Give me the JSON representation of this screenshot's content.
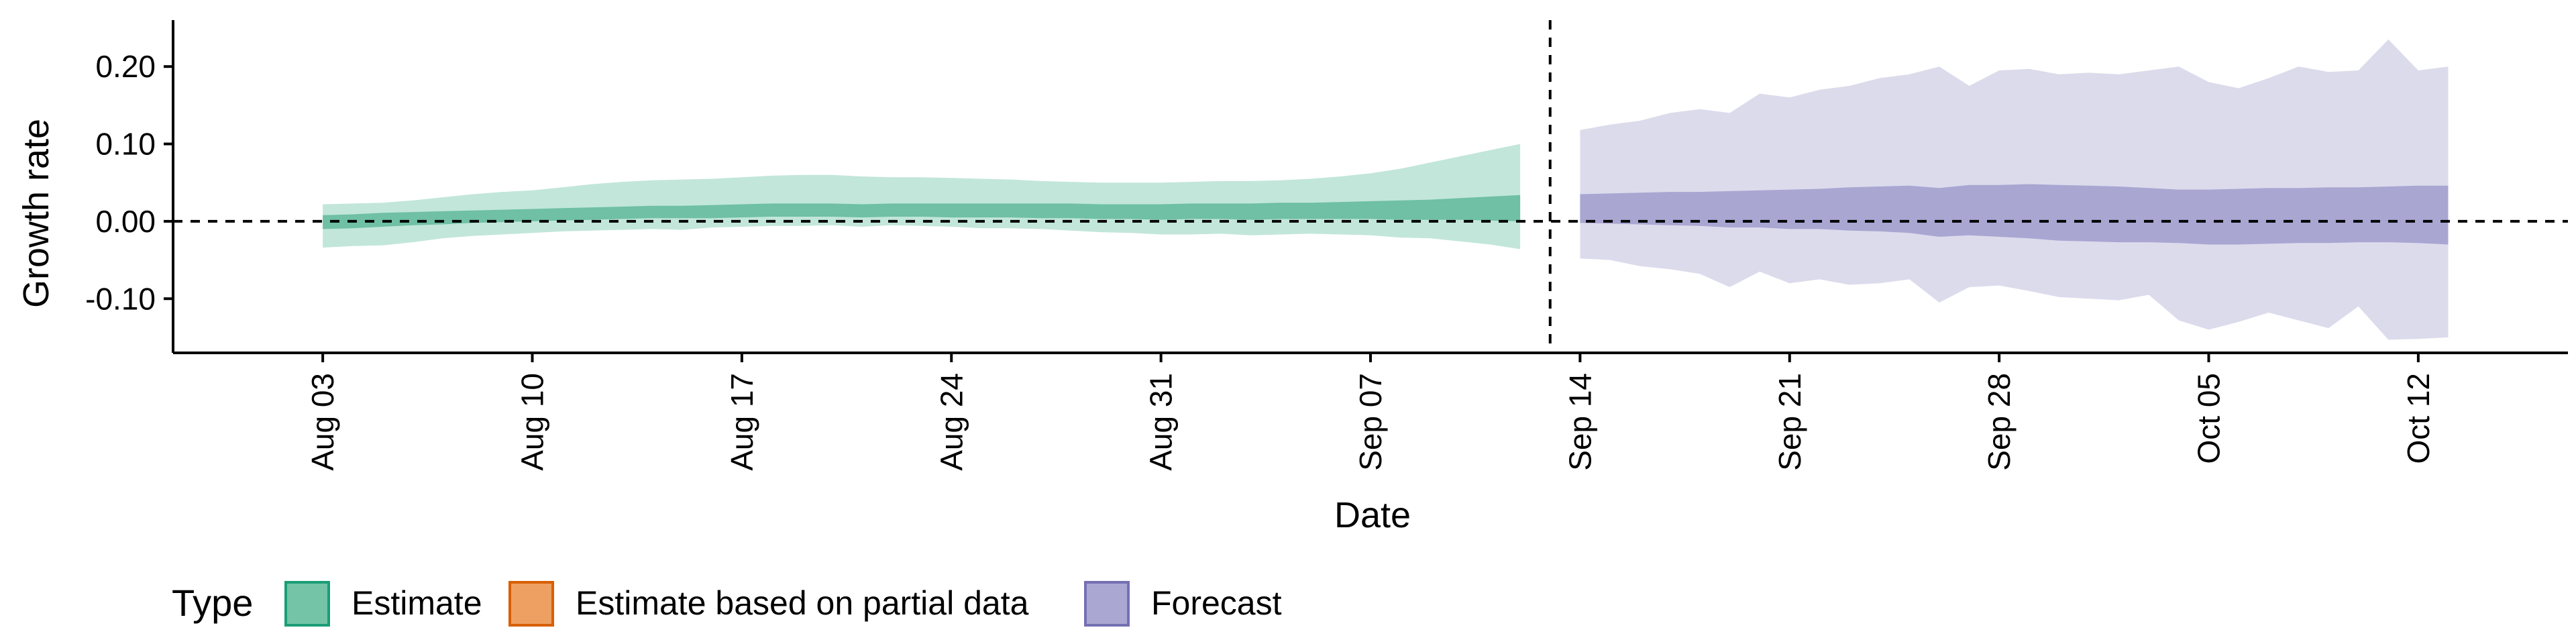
{
  "chart_data": {
    "type": "area",
    "title": "",
    "xlabel": "Date",
    "ylabel": "Growth rate",
    "x_range": [
      "2020-07-29",
      "2020-10-17"
    ],
    "ylim": [
      -0.17,
      0.26
    ],
    "y_ticks": [
      {
        "value": -0.1,
        "label": "-0.10"
      },
      {
        "value": 0.0,
        "label": "0.00"
      },
      {
        "value": 0.1,
        "label": "0.10"
      },
      {
        "value": 0.2,
        "label": "0.20"
      }
    ],
    "x_ticks": [
      {
        "date": "2020-08-03",
        "label": "Aug 03"
      },
      {
        "date": "2020-08-10",
        "label": "Aug 10"
      },
      {
        "date": "2020-08-17",
        "label": "Aug 17"
      },
      {
        "date": "2020-08-24",
        "label": "Aug 24"
      },
      {
        "date": "2020-08-31",
        "label": "Aug 31"
      },
      {
        "date": "2020-09-07",
        "label": "Sep 07"
      },
      {
        "date": "2020-09-14",
        "label": "Sep 14"
      },
      {
        "date": "2020-09-21",
        "label": "Sep 21"
      },
      {
        "date": "2020-09-28",
        "label": "Sep 28"
      },
      {
        "date": "2020-10-05",
        "label": "Oct 05"
      },
      {
        "date": "2020-10-12",
        "label": "Oct 12"
      }
    ],
    "grid": false,
    "reference_lines": [
      {
        "axis": "y",
        "value": 0,
        "style": "dashed"
      },
      {
        "axis": "x",
        "date": "2020-09-13",
        "style": "dashed"
      }
    ],
    "legend": {
      "title": "Type",
      "position": "bottom-left",
      "entries": [
        {
          "label": "Estimate",
          "fill": "#1b9e77"
        },
        {
          "label": "Estimate based on partial data",
          "fill": "#d95f02"
        },
        {
          "label": "Forecast",
          "fill": "#7570b3"
        }
      ]
    },
    "series": [
      {
        "name": "Estimate",
        "color": "#1b9e77",
        "x": [
          "2020-08-03",
          "2020-08-04",
          "2020-08-05",
          "2020-08-06",
          "2020-08-07",
          "2020-08-08",
          "2020-08-09",
          "2020-08-10",
          "2020-08-11",
          "2020-08-12",
          "2020-08-13",
          "2020-08-14",
          "2020-08-15",
          "2020-08-16",
          "2020-08-17",
          "2020-08-18",
          "2020-08-19",
          "2020-08-20",
          "2020-08-21",
          "2020-08-22",
          "2020-08-23",
          "2020-08-24",
          "2020-08-25",
          "2020-08-26",
          "2020-08-27",
          "2020-08-28",
          "2020-08-29",
          "2020-08-30",
          "2020-08-31",
          "2020-09-01",
          "2020-09-02",
          "2020-09-03",
          "2020-09-04",
          "2020-09-05",
          "2020-09-06",
          "2020-09-07",
          "2020-09-08",
          "2020-09-09",
          "2020-09-10",
          "2020-09-11",
          "2020-09-12"
        ],
        "lower_90": [
          -0.034,
          -0.032,
          -0.031,
          -0.027,
          -0.022,
          -0.019,
          -0.017,
          -0.015,
          -0.013,
          -0.012,
          -0.011,
          -0.01,
          -0.011,
          -0.008,
          -0.007,
          -0.006,
          -0.006,
          -0.005,
          -0.007,
          -0.005,
          -0.006,
          -0.007,
          -0.009,
          -0.009,
          -0.01,
          -0.012,
          -0.014,
          -0.015,
          -0.017,
          -0.017,
          -0.016,
          -0.018,
          -0.017,
          -0.016,
          -0.017,
          -0.018,
          -0.021,
          -0.022,
          -0.026,
          -0.03,
          -0.036
        ],
        "lower_50": [
          -0.01,
          -0.009,
          -0.007,
          -0.005,
          -0.004,
          -0.002,
          -0.001,
          0.0,
          0.001,
          0.002,
          0.003,
          0.004,
          0.004,
          0.004,
          0.005,
          0.006,
          0.006,
          0.006,
          0.005,
          0.006,
          0.006,
          0.005,
          0.005,
          0.005,
          0.004,
          0.004,
          0.003,
          0.003,
          0.002,
          0.003,
          0.003,
          0.002,
          0.003,
          0.003,
          0.003,
          0.003,
          0.002,
          0.002,
          0.002,
          0.001,
          0.0
        ],
        "upper_50": [
          0.008,
          0.009,
          0.011,
          0.012,
          0.013,
          0.014,
          0.015,
          0.016,
          0.017,
          0.018,
          0.019,
          0.02,
          0.02,
          0.021,
          0.022,
          0.023,
          0.023,
          0.023,
          0.022,
          0.023,
          0.023,
          0.023,
          0.023,
          0.023,
          0.023,
          0.023,
          0.022,
          0.022,
          0.022,
          0.023,
          0.023,
          0.023,
          0.024,
          0.024,
          0.025,
          0.026,
          0.027,
          0.028,
          0.03,
          0.032,
          0.034
        ],
        "upper_90": [
          0.022,
          0.023,
          0.024,
          0.027,
          0.031,
          0.035,
          0.038,
          0.04,
          0.044,
          0.048,
          0.051,
          0.053,
          0.054,
          0.055,
          0.057,
          0.059,
          0.06,
          0.06,
          0.058,
          0.057,
          0.057,
          0.056,
          0.055,
          0.054,
          0.052,
          0.051,
          0.05,
          0.05,
          0.05,
          0.051,
          0.052,
          0.052,
          0.053,
          0.055,
          0.058,
          0.062,
          0.068,
          0.076,
          0.084,
          0.092,
          0.1
        ]
      },
      {
        "name": "Forecast",
        "color": "#7570b3",
        "x": [
          "2020-09-14",
          "2020-09-15",
          "2020-09-16",
          "2020-09-17",
          "2020-09-18",
          "2020-09-19",
          "2020-09-20",
          "2020-09-21",
          "2020-09-22",
          "2020-09-23",
          "2020-09-24",
          "2020-09-25",
          "2020-09-26",
          "2020-09-27",
          "2020-09-28",
          "2020-09-29",
          "2020-09-30",
          "2020-10-01",
          "2020-10-02",
          "2020-10-03",
          "2020-10-04",
          "2020-10-05",
          "2020-10-06",
          "2020-10-07",
          "2020-10-08",
          "2020-10-09",
          "2020-10-10",
          "2020-10-11",
          "2020-10-12",
          "2020-10-13"
        ],
        "lower_90": [
          -0.048,
          -0.05,
          -0.058,
          -0.062,
          -0.068,
          -0.085,
          -0.065,
          -0.08,
          -0.075,
          -0.082,
          -0.08,
          -0.075,
          -0.105,
          -0.085,
          -0.083,
          -0.09,
          -0.098,
          -0.1,
          -0.102,
          -0.095,
          -0.128,
          -0.14,
          -0.13,
          -0.118,
          -0.128,
          -0.138,
          -0.11,
          -0.153,
          -0.152,
          -0.15
        ],
        "lower_50": [
          -0.002,
          -0.003,
          -0.004,
          -0.005,
          -0.006,
          -0.008,
          -0.008,
          -0.01,
          -0.01,
          -0.012,
          -0.013,
          -0.015,
          -0.02,
          -0.018,
          -0.02,
          -0.022,
          -0.025,
          -0.026,
          -0.027,
          -0.027,
          -0.028,
          -0.03,
          -0.03,
          -0.029,
          -0.028,
          -0.028,
          -0.027,
          -0.027,
          -0.028,
          -0.03
        ],
        "upper_50": [
          0.035,
          0.036,
          0.037,
          0.038,
          0.038,
          0.039,
          0.04,
          0.041,
          0.042,
          0.044,
          0.045,
          0.046,
          0.043,
          0.047,
          0.047,
          0.048,
          0.047,
          0.046,
          0.045,
          0.043,
          0.041,
          0.041,
          0.042,
          0.043,
          0.043,
          0.044,
          0.044,
          0.045,
          0.046,
          0.046
        ],
        "upper_90": [
          0.118,
          0.125,
          0.13,
          0.14,
          0.145,
          0.14,
          0.165,
          0.16,
          0.17,
          0.175,
          0.185,
          0.19,
          0.2,
          0.175,
          0.195,
          0.197,
          0.19,
          0.192,
          0.19,
          0.195,
          0.2,
          0.18,
          0.172,
          0.185,
          0.2,
          0.193,
          0.195,
          0.235,
          0.195,
          0.2
        ]
      }
    ]
  }
}
